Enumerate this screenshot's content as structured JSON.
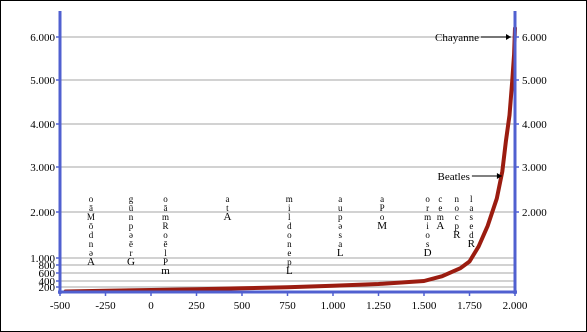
{
  "chart_data": {
    "type": "line",
    "title": "",
    "xlabel": "",
    "ylabel": "",
    "x_ticks": [
      "-500",
      "-250",
      "0",
      "250",
      "500",
      "750",
      "1.000",
      "1.250",
      "1.500",
      "1.750",
      "2.000"
    ],
    "x_tick_values": [
      -500,
      -250,
      0,
      250,
      500,
      750,
      1000,
      1250,
      1500,
      1750,
      2000
    ],
    "xlim": [
      -500,
      2000
    ],
    "y_left_ticks": [
      "6.000",
      "5.000",
      "4.000",
      "3.000",
      "2.000",
      "1.000",
      "800",
      "600",
      "400",
      "200"
    ],
    "y_left_tick_values": [
      6000,
      5000,
      4000,
      3000,
      2000,
      1000,
      800,
      600,
      400,
      200
    ],
    "y_right_ticks": [
      "6.000",
      "5.000",
      "4.000",
      "3.000",
      "2.000"
    ],
    "y_right_tick_values": [
      6000,
      5000,
      4000,
      3000,
      2000
    ],
    "ylim": [
      0,
      6250
    ],
    "grid": true,
    "series": [
      {
        "color": "#9b1c10",
        "points": [
          [
            -470,
            20
          ],
          [
            -250,
            50
          ],
          [
            0,
            80
          ],
          [
            250,
            110
          ],
          [
            500,
            150
          ],
          [
            750,
            190
          ],
          [
            1000,
            240
          ],
          [
            1250,
            300
          ],
          [
            1500,
            400
          ],
          [
            1600,
            520
          ],
          [
            1700,
            720
          ],
          [
            1750,
            900
          ],
          [
            1800,
            1250
          ],
          [
            1850,
            1700
          ],
          [
            1900,
            2300
          ],
          [
            1930,
            2900
          ],
          [
            1950,
            3600
          ],
          [
            1970,
            4200
          ],
          [
            1985,
            5000
          ],
          [
            1995,
            5600
          ],
          [
            2000,
            6200
          ]
        ]
      }
    ],
    "annotations": [
      {
        "label": "Chayanne",
        "x": 2000,
        "y": 6000
      },
      {
        "label": "Beatles",
        "x": 1950,
        "y": 2800
      }
    ],
    "stacked_labels": [
      {
        "x": -330,
        "top": 2050,
        "chars": "o",
        "lines": [
          "o",
          "ā",
          "M",
          "ō",
          "d",
          "n",
          "ə",
          "A"
        ]
      },
      {
        "x": -110,
        "top": 2050,
        "chars": "g",
        "lines": [
          "g",
          "ū",
          "n",
          "p",
          "ə",
          "ē",
          "r",
          "G"
        ]
      },
      {
        "x": 80,
        "top": 2050,
        "chars": "o",
        "lines": [
          "o",
          "ā",
          "m",
          "R",
          "o",
          "ē",
          "l",
          "P",
          "m"
        ]
      },
      {
        "x": 420,
        "top": 2050,
        "chars": "a",
        "lines": [
          "a",
          "t",
          "A"
        ]
      },
      {
        "x": 760,
        "top": 2050,
        "chars": "m",
        "lines": [
          "m",
          "i",
          "l",
          "d",
          "o",
          "n",
          "e",
          "p",
          "L"
        ]
      },
      {
        "x": 1040,
        "top": 2050,
        "chars": "a",
        "lines": [
          "a",
          "u",
          "p",
          "ə",
          "s",
          "a",
          "L"
        ]
      },
      {
        "x": 1270,
        "top": 2050,
        "chars": "a",
        "lines": [
          "a",
          "P",
          "o",
          "M"
        ]
      },
      {
        "x": 1520,
        "top": 2050,
        "chars": "o",
        "lines": [
          "o",
          "r",
          "m",
          "i",
          "o",
          "s",
          "D"
        ]
      },
      {
        "x": 1590,
        "top": 2050,
        "chars": "c",
        "lines": [
          "c",
          "e",
          "m",
          "A"
        ]
      },
      {
        "x": 1680,
        "top": 2050,
        "chars": "n",
        "lines": [
          "n",
          "o",
          "c",
          "p",
          "R"
        ]
      },
      {
        "x": 1760,
        "top": 2050,
        "chars": "l",
        "lines": [
          "l",
          "a",
          "s",
          "e",
          "d",
          "R"
        ]
      }
    ]
  }
}
